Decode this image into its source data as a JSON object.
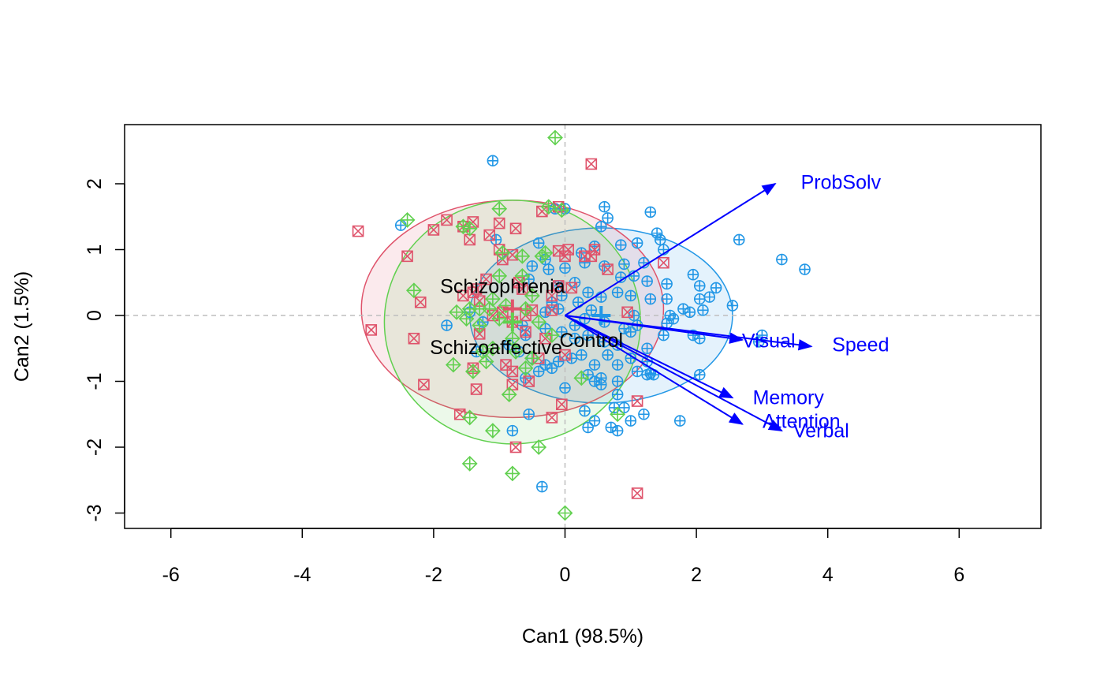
{
  "chart_data": {
    "type": "scatter",
    "title": "",
    "xlabel": "Can1 (98.5%)",
    "ylabel": "Can2 (1.5%)",
    "xlim": [
      -6.7,
      7.2
    ],
    "ylim": [
      -3.2,
      2.9
    ],
    "xticks": [
      -6,
      -4,
      -2,
      0,
      2,
      4,
      6
    ],
    "yticks": [
      -3,
      -2,
      -1,
      0,
      1,
      2
    ],
    "reference_lines": {
      "x": 0,
      "y": 0,
      "style": "dashed",
      "color": "#BEBEBE"
    },
    "grid": false,
    "legend": null,
    "series": [
      {
        "name": "Control",
        "color": "#2297E6",
        "marker": "circle-plus",
        "centroid": [
          0.55,
          0.0
        ],
        "ellipse": {
          "cx": 0.55,
          "cy": 0.0,
          "rx": 2.0,
          "ry": 1.33
        },
        "points": [
          [
            -1.1,
            2.35
          ],
          [
            -2.5,
            1.37
          ],
          [
            -1.05,
            1.15
          ],
          [
            -0.15,
            1.62
          ],
          [
            0.0,
            1.62
          ],
          [
            0.6,
            1.65
          ],
          [
            0.65,
            1.48
          ],
          [
            1.3,
            1.57
          ],
          [
            0.55,
            1.35
          ],
          [
            -0.4,
            1.1
          ],
          [
            -0.3,
            0.85
          ],
          [
            0.45,
            1.05
          ],
          [
            0.25,
            0.95
          ],
          [
            0.85,
            1.07
          ],
          [
            1.1,
            1.1
          ],
          [
            1.4,
            1.25
          ],
          [
            1.45,
            1.15
          ],
          [
            1.5,
            1.0
          ],
          [
            1.2,
            0.8
          ],
          [
            0.9,
            0.78
          ],
          [
            0.6,
            0.75
          ],
          [
            0.3,
            0.8
          ],
          [
            0.0,
            0.72
          ],
          [
            -0.5,
            0.75
          ],
          [
            -0.25,
            0.7
          ],
          [
            -0.55,
            0.55
          ],
          [
            -0.1,
            0.45
          ],
          [
            0.15,
            0.5
          ],
          [
            0.85,
            0.58
          ],
          [
            1.05,
            0.6
          ],
          [
            1.25,
            0.52
          ],
          [
            1.55,
            0.48
          ],
          [
            1.95,
            0.62
          ],
          [
            2.05,
            0.45
          ],
          [
            2.3,
            0.42
          ],
          [
            2.55,
            0.15
          ],
          [
            2.65,
            1.15
          ],
          [
            3.3,
            0.85
          ],
          [
            3.65,
            0.7
          ],
          [
            0.35,
            0.35
          ],
          [
            0.55,
            0.28
          ],
          [
            0.8,
            0.35
          ],
          [
            1.0,
            0.3
          ],
          [
            1.3,
            0.25
          ],
          [
            1.55,
            0.25
          ],
          [
            1.8,
            0.1
          ],
          [
            2.05,
            0.25
          ],
          [
            2.2,
            0.28
          ],
          [
            1.6,
            0.0
          ],
          [
            1.9,
            0.05
          ],
          [
            2.1,
            0.08
          ],
          [
            1.65,
            -0.05
          ],
          [
            1.55,
            -0.12
          ],
          [
            1.1,
            -0.15
          ],
          [
            0.9,
            -0.2
          ],
          [
            0.6,
            -0.1
          ],
          [
            0.4,
            0.08
          ],
          [
            -0.1,
            0.1
          ],
          [
            -0.3,
            0.05
          ],
          [
            -1.8,
            -0.15
          ],
          [
            -1.45,
            0.05
          ],
          [
            -1.25,
            -0.1
          ],
          [
            -0.65,
            -0.15
          ],
          [
            -0.6,
            -0.3
          ],
          [
            -0.3,
            -0.2
          ],
          [
            -0.05,
            -0.25
          ],
          [
            0.15,
            -0.35
          ],
          [
            0.35,
            -0.3
          ],
          [
            0.6,
            -0.4
          ],
          [
            0.8,
            -0.45
          ],
          [
            1.0,
            -0.25
          ],
          [
            1.25,
            -0.5
          ],
          [
            1.5,
            -0.3
          ],
          [
            1.95,
            -0.3
          ],
          [
            2.05,
            -0.35
          ],
          [
            2.95,
            -0.4
          ],
          [
            3.0,
            -0.3
          ],
          [
            -1.35,
            -0.55
          ],
          [
            -0.85,
            -0.45
          ],
          [
            -0.7,
            -0.55
          ],
          [
            -0.5,
            -0.65
          ],
          [
            -0.3,
            -0.75
          ],
          [
            -0.1,
            -0.7
          ],
          [
            0.1,
            -0.65
          ],
          [
            0.25,
            -0.6
          ],
          [
            0.45,
            -0.75
          ],
          [
            0.65,
            -0.6
          ],
          [
            0.8,
            -0.75
          ],
          [
            1.0,
            -0.65
          ],
          [
            1.25,
            -0.7
          ],
          [
            1.25,
            -0.9
          ],
          [
            1.3,
            -0.88
          ],
          [
            1.35,
            -0.9
          ],
          [
            2.05,
            -0.9
          ],
          [
            1.1,
            -0.85
          ],
          [
            0.8,
            -1.0
          ],
          [
            0.55,
            -0.95
          ],
          [
            0.35,
            -0.9
          ],
          [
            0.0,
            -1.1
          ],
          [
            -0.6,
            -0.95
          ],
          [
            -0.4,
            -0.85
          ],
          [
            -0.2,
            -0.8
          ],
          [
            0.55,
            -1.05
          ],
          [
            0.8,
            -1.2
          ],
          [
            0.9,
            -1.4
          ],
          [
            0.75,
            -1.4
          ],
          [
            0.3,
            -1.45
          ],
          [
            0.45,
            -1.6
          ],
          [
            0.35,
            -1.7
          ],
          [
            0.7,
            -1.7
          ],
          [
            0.8,
            -1.75
          ],
          [
            1.0,
            -1.6
          ],
          [
            1.2,
            -1.5
          ],
          [
            1.75,
            -1.6
          ],
          [
            0.45,
            -1.0
          ],
          [
            -0.55,
            -1.5
          ],
          [
            -0.8,
            -1.75
          ],
          [
            -0.35,
            -2.6
          ],
          [
            0.15,
            -0.15
          ],
          [
            0.2,
            0.2
          ],
          [
            1.05,
            0.0
          ],
          [
            0.3,
            -0.05
          ],
          [
            -0.05,
            0.3
          ],
          [
            -0.2,
            0.2
          ]
        ]
      },
      {
        "name": "Schizophrenia",
        "color": "#DF536B",
        "marker": "square-x",
        "centroid": [
          -0.8,
          0.1
        ],
        "ellipse": {
          "cx": -0.8,
          "cy": 0.1,
          "rx": 2.3,
          "ry": 1.65
        },
        "points": [
          [
            -3.15,
            1.28
          ],
          [
            -2.95,
            -0.22
          ],
          [
            -2.4,
            0.9
          ],
          [
            -2.3,
            -0.35
          ],
          [
            -2.2,
            0.2
          ],
          [
            -2.15,
            -1.05
          ],
          [
            -2.0,
            1.3
          ],
          [
            -1.8,
            1.45
          ],
          [
            -1.55,
            1.35
          ],
          [
            -1.4,
            1.42
          ],
          [
            -1.45,
            1.15
          ],
          [
            -1.55,
            0.3
          ],
          [
            -1.35,
            0.4
          ],
          [
            -1.3,
            0.22
          ],
          [
            -1.4,
            -0.8
          ],
          [
            -1.35,
            -1.12
          ],
          [
            -1.6,
            -1.5
          ],
          [
            -1.3,
            -0.28
          ],
          [
            -1.2,
            0.55
          ],
          [
            -1.15,
            1.22
          ],
          [
            -1.0,
            1.4
          ],
          [
            -1.0,
            1.0
          ],
          [
            -0.95,
            0.85
          ],
          [
            -0.8,
            0.92
          ],
          [
            -0.75,
            1.32
          ],
          [
            -0.7,
            0.5
          ],
          [
            -0.65,
            0.4
          ],
          [
            -0.95,
            0.05
          ],
          [
            -0.8,
            -0.1
          ],
          [
            -0.6,
            0.0
          ],
          [
            -0.5,
            0.08
          ],
          [
            -0.6,
            -0.25
          ],
          [
            -0.8,
            -0.85
          ],
          [
            -0.8,
            -1.05
          ],
          [
            -0.75,
            -2.0
          ],
          [
            -0.9,
            -0.75
          ],
          [
            -0.55,
            -1.0
          ],
          [
            -0.4,
            -0.65
          ],
          [
            -0.35,
            1.58
          ],
          [
            -0.1,
            1.65
          ],
          [
            -0.1,
            0.98
          ],
          [
            0.0,
            0.9
          ],
          [
            0.05,
            1.0
          ],
          [
            -0.2,
            0.3
          ],
          [
            -0.2,
            0.08
          ],
          [
            -0.1,
            0.45
          ],
          [
            0.1,
            0.42
          ],
          [
            0.3,
            0.9
          ],
          [
            0.4,
            0.9
          ],
          [
            0.45,
            1.0
          ],
          [
            0.65,
            0.7
          ],
          [
            0.95,
            0.05
          ],
          [
            1.1,
            -1.3
          ],
          [
            1.1,
            -2.7
          ],
          [
            0.4,
            2.3
          ],
          [
            -0.2,
            -1.55
          ],
          [
            -0.05,
            -1.35
          ],
          [
            0.0,
            -0.6
          ],
          [
            -1.4,
            0.35
          ],
          [
            -1.1,
            0.0
          ],
          [
            -0.3,
            -0.35
          ],
          [
            1.5,
            0.8
          ]
        ]
      },
      {
        "name": "Schizoaffective",
        "color": "#61D04F",
        "marker": "diamond-plus",
        "centroid": [
          -0.8,
          -0.1
        ],
        "ellipse": {
          "cx": -0.8,
          "cy": -0.1,
          "rx": 1.95,
          "ry": 1.85
        },
        "points": [
          [
            -0.15,
            2.7
          ],
          [
            -2.4,
            1.45
          ],
          [
            -2.3,
            0.38
          ],
          [
            -1.55,
            1.35
          ],
          [
            -1.45,
            1.32
          ],
          [
            -1.0,
            1.62
          ],
          [
            -0.95,
            0.95
          ],
          [
            -0.65,
            0.9
          ],
          [
            -0.3,
            0.95
          ],
          [
            -0.35,
            0.9
          ],
          [
            -0.05,
            1.6
          ],
          [
            -0.25,
            1.65
          ],
          [
            -1.65,
            0.05
          ],
          [
            -1.45,
            0.1
          ],
          [
            -1.5,
            -0.05
          ],
          [
            -1.3,
            0.1
          ],
          [
            -1.3,
            -0.15
          ],
          [
            -1.15,
            0.1
          ],
          [
            -1.1,
            0.25
          ],
          [
            -1.0,
            -0.05
          ],
          [
            -0.9,
            0.15
          ],
          [
            -0.8,
            -0.35
          ],
          [
            -0.5,
            0.3
          ],
          [
            -0.4,
            -0.1
          ],
          [
            -0.75,
            -0.55
          ],
          [
            -1.1,
            -0.5
          ],
          [
            -1.2,
            -0.7
          ],
          [
            -1.25,
            -0.55
          ],
          [
            -1.4,
            -0.85
          ],
          [
            -1.7,
            -0.75
          ],
          [
            -0.5,
            -0.65
          ],
          [
            -0.6,
            -0.8
          ],
          [
            -0.85,
            -1.2
          ],
          [
            -1.45,
            -1.55
          ],
          [
            -1.1,
            -1.75
          ],
          [
            -0.4,
            -2.0
          ],
          [
            -1.45,
            -2.25
          ],
          [
            -0.8,
            -2.4
          ],
          [
            0.0,
            -3.0
          ],
          [
            0.25,
            -0.95
          ],
          [
            0.8,
            -1.5
          ],
          [
            -0.6,
            0.1
          ],
          [
            -0.2,
            -0.3
          ],
          [
            -1.0,
            0.6
          ],
          [
            -0.65,
            0.6
          ]
        ]
      }
    ],
    "group_labels": [
      {
        "text": "Schizophrenia",
        "x": -0.95,
        "y": 0.45
      },
      {
        "text": "Schizoaffective",
        "x": -1.05,
        "y": -0.48
      },
      {
        "text": "Control",
        "x": 0.4,
        "y": -0.37
      }
    ],
    "vectors": [
      {
        "name": "ProbSolv",
        "x": 3.2,
        "y": 2.0,
        "label_x": 4.2,
        "label_y": 2.03
      },
      {
        "name": "Speed",
        "x": 3.75,
        "y": -0.47,
        "label_x": 4.5,
        "label_y": -0.44
      },
      {
        "name": "Visual",
        "x": 2.7,
        "y": -0.37,
        "label_x": 3.1,
        "label_y": -0.38
      },
      {
        "name": "Memory",
        "x": 2.55,
        "y": -1.25,
        "label_x": 3.4,
        "label_y": -1.24
      },
      {
        "name": "Attention",
        "x": 2.7,
        "y": -1.65,
        "label_x": 3.6,
        "label_y": -1.6
      },
      {
        "name": "Verbal",
        "x": 3.3,
        "y": -1.75,
        "label_x": 3.9,
        "label_y": -1.74
      }
    ],
    "vector_color": "#0000FF"
  }
}
